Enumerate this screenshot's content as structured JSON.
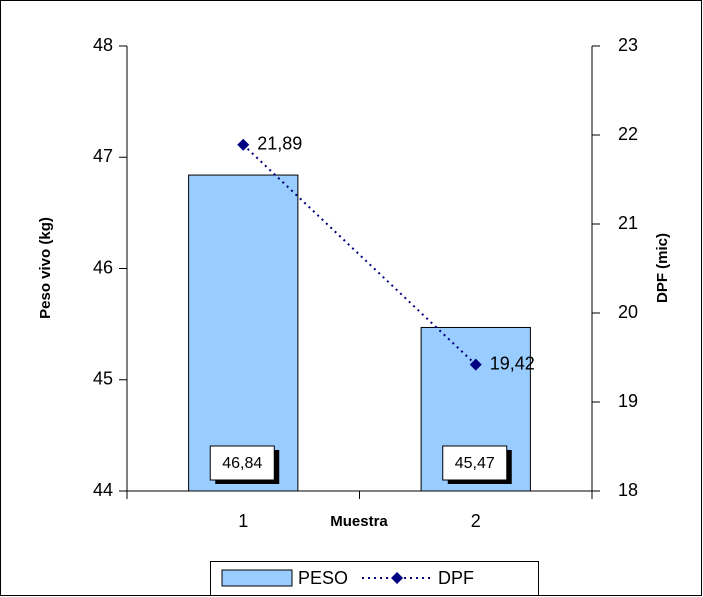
{
  "chart_data": {
    "type": "bar",
    "categories": [
      "1",
      "2"
    ],
    "x_label": "Muestra",
    "y_label": "Peso vivo (kg)",
    "y2_label": "DPF (mic)",
    "series": [
      {
        "name": "PESO",
        "color": "#99ccff",
        "values": [
          46.84,
          45.47
        ],
        "value_labels": [
          "46,84",
          "45,47"
        ]
      },
      {
        "name": "DPF",
        "color": "#000080",
        "type": "line",
        "axis": "y2",
        "values": [
          21.89,
          19.42
        ],
        "value_labels": [
          "21,89",
          "19,42"
        ]
      }
    ],
    "ylim": [
      44,
      48
    ],
    "yticks": [
      44,
      45,
      46,
      47,
      48
    ],
    "y2lim": [
      18,
      23
    ],
    "y2ticks": [
      18,
      19,
      20,
      21,
      22,
      23
    ]
  }
}
